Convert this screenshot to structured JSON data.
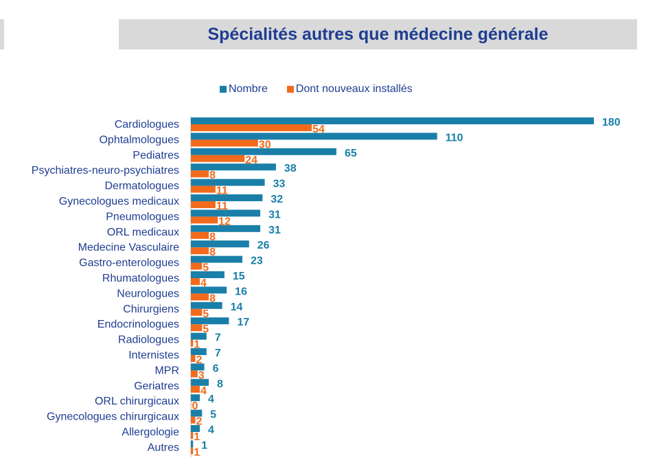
{
  "title": "Spécialités autres que médecine générale",
  "colors": {
    "nombre": "#1a7fa8",
    "nouveaux": "#f26a1b",
    "label": "#1f3d91",
    "title_bg": "#d9d9d9",
    "axis": "#c0c0c0"
  },
  "legend": [
    {
      "label": "Nombre",
      "color": "#1a7fa8"
    },
    {
      "label": "Dont nouveaux installés",
      "color": "#f26a1b"
    }
  ],
  "chart_data": {
    "type": "bar",
    "orientation": "horizontal",
    "legend_position": "top",
    "grid": false,
    "categories": [
      "Cardiologues",
      "Ophtalmologues",
      "Pediatres",
      "Psychiatres-neuro-psychiatres",
      "Dermatologues",
      "Gynecologues medicaux",
      "Pneumologues",
      "ORL medicaux",
      "Medecine Vasculaire",
      "Gastro-enterologues",
      "Rhumatologues",
      "Neurologues",
      "Chirurgiens",
      "Endocrinologues",
      "Radiologues",
      "Internistes",
      "MPR",
      "Geriatres",
      "ORL chirurgicaux",
      "Gynecologues chirurgicaux",
      "Allergologie",
      "Autres"
    ],
    "series": [
      {
        "name": "Nombre",
        "values": [
          180,
          110,
          65,
          38,
          33,
          32,
          31,
          31,
          26,
          23,
          15,
          16,
          14,
          17,
          7,
          7,
          6,
          8,
          4,
          5,
          4,
          1
        ]
      },
      {
        "name": "Dont nouveaux installés",
        "values": [
          54,
          30,
          24,
          8,
          11,
          11,
          12,
          8,
          8,
          5,
          4,
          8,
          5,
          5,
          1,
          2,
          3,
          4,
          0,
          2,
          1,
          1
        ]
      }
    ],
    "xlim": [
      0,
      180
    ]
  }
}
